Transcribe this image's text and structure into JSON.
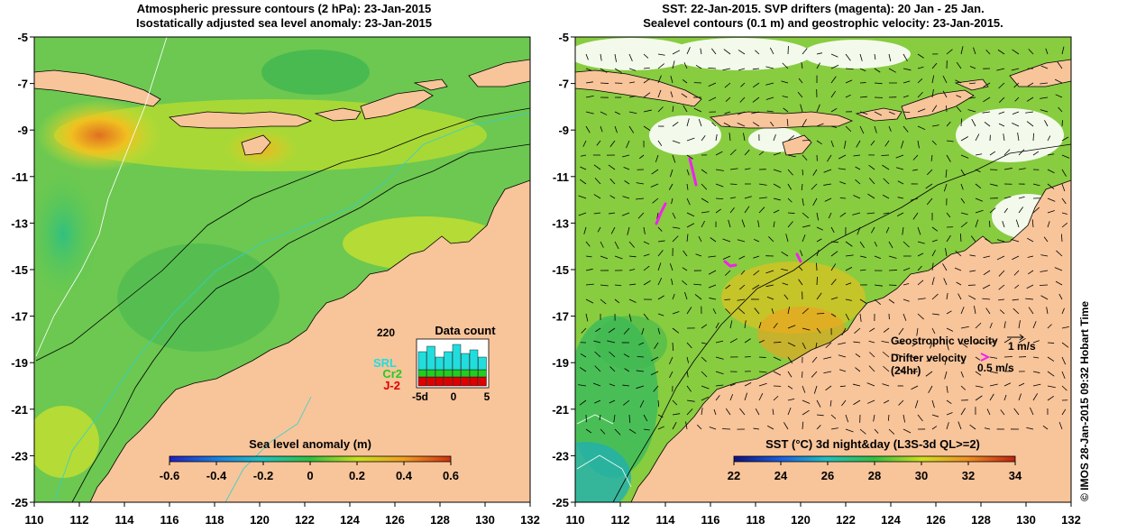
{
  "left_panel": {
    "title_line1": "Atmospheric pressure contours (2 hPa): 23-Jan-2015",
    "title_line2": "Isostatically adjusted sea level anomaly: 23-Jan-2015",
    "colorbar": {
      "label": "Sea level anomaly (m)",
      "ticks": [
        "-0.6",
        "-0.4",
        "-0.2",
        "0",
        "0.2",
        "0.4",
        "0.6"
      ],
      "range": [
        -0.6,
        0.6
      ]
    },
    "data_count": {
      "title": "Data count",
      "max_label": "220",
      "x_ticks": [
        "-5d",
        "0",
        "5"
      ],
      "satellites": [
        {
          "name": "SRL",
          "color": "#22dddd"
        },
        {
          "name": "Cr2",
          "color": "#22cc22"
        },
        {
          "name": "J-2",
          "color": "#dd0000"
        }
      ]
    }
  },
  "right_panel": {
    "title_line1": "SST: 22-Jan-2015. SVP drifters (magenta): 20 Jan - 25 Jan.",
    "title_line2": "Sealevel contours (0.1 m) and geostrophic velocity: 23-Jan-2015.",
    "colorbar": {
      "label": "SST (°C) 3d night&day (L3S-3d QL>=2)",
      "ticks": [
        "22",
        "24",
        "26",
        "28",
        "30",
        "32",
        "34"
      ],
      "range": [
        22,
        34
      ]
    },
    "legend": {
      "geostrophic_label": "Geostrophic velocity",
      "geostrophic_scale": "1 m/s",
      "drifter_label": "Drifter velocity",
      "drifter_sub": "(24hr)",
      "drifter_scale": "0.5 m/s"
    }
  },
  "axes": {
    "lon_ticks": [
      "110",
      "112",
      "114",
      "116",
      "118",
      "120",
      "122",
      "124",
      "126",
      "128",
      "130",
      "132"
    ],
    "lat_ticks": [
      "-5",
      "-7",
      "-9",
      "-11",
      "-13",
      "-15",
      "-17",
      "-19",
      "-21",
      "-23",
      "-25"
    ],
    "lon_range": [
      110,
      132
    ],
    "lat_range": [
      -25,
      -5
    ]
  },
  "credit": "© IMOS 28-Jan-2015 09:32 Hobart Time",
  "colors": {
    "land": "#f8c49a",
    "sea_base": "#7ec850",
    "coast": "#000000",
    "drifter": "#ee22ee"
  }
}
